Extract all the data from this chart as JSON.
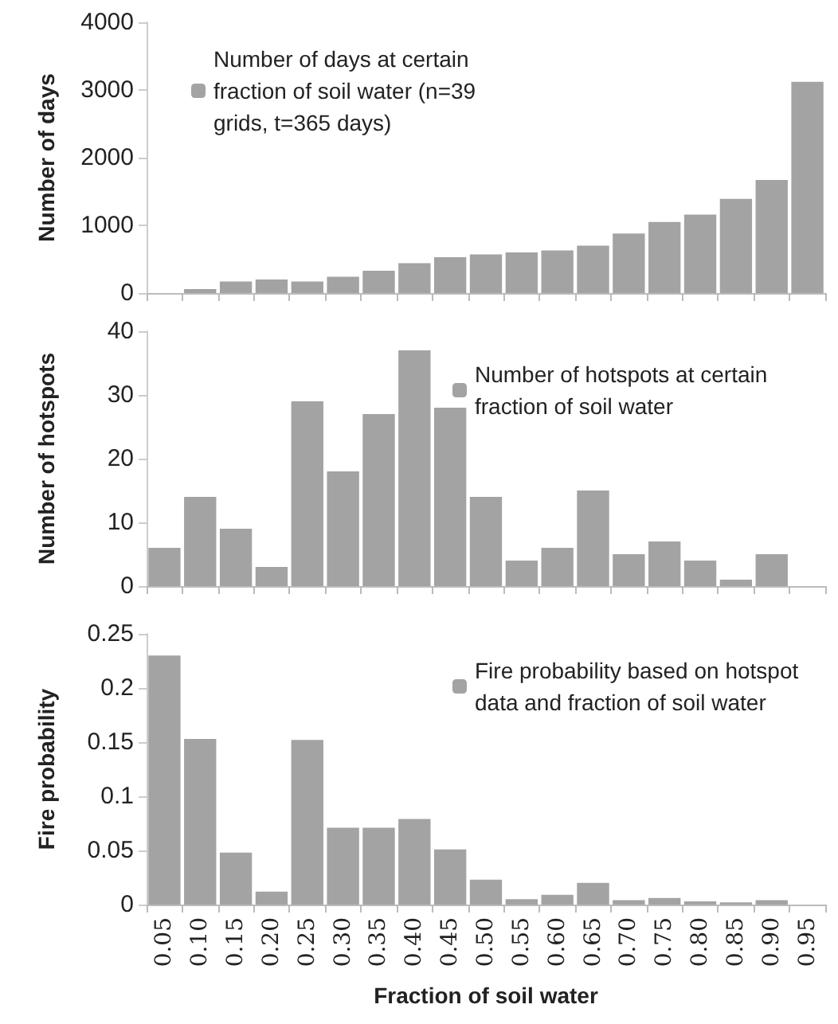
{
  "chart_data": [
    {
      "type": "bar",
      "ylabel": "Number of days",
      "categories": [
        "0.05",
        "0.10",
        "0.15",
        "0.20",
        "0.25",
        "0.30",
        "0.35",
        "0.40",
        "0.45",
        "0.50",
        "0.55",
        "0.60",
        "0.65",
        "0.70",
        "0.75",
        "0.80",
        "0.85",
        "0.90",
        "0.95"
      ],
      "series": [
        {
          "name": "Number of days at certain fraction of soil water (n=39 grids, t=365 days)",
          "color": "#a3a3a3",
          "values": [
            0,
            60,
            170,
            200,
            170,
            240,
            330,
            440,
            530,
            570,
            600,
            630,
            700,
            880,
            1050,
            1160,
            1390,
            1670,
            3120
          ]
        }
      ],
      "ylim": [
        0,
        4000
      ],
      "yticks": [
        0,
        1000,
        2000,
        3000,
        4000
      ],
      "grid": false,
      "legend": "top left",
      "tick_labels": "y"
    },
    {
      "type": "bar",
      "ylabel": "Number of hotspots",
      "categories": [
        "0.05",
        "0.10",
        "0.15",
        "0.20",
        "0.25",
        "0.30",
        "0.35",
        "0.40",
        "0.45",
        "0.50",
        "0.55",
        "0.60",
        "0.65",
        "0.70",
        "0.75",
        "0.80",
        "0.85",
        "0.90",
        "0.95"
      ],
      "series": [
        {
          "name": "Number of hotspots at certain fraction of soil water",
          "color": "#a3a3a3",
          "values": [
            6,
            14,
            9,
            3,
            29,
            18,
            27,
            37,
            28,
            14,
            4,
            6,
            15,
            5,
            7,
            4,
            1,
            5,
            0
          ]
        }
      ],
      "ylim": [
        0,
        40
      ],
      "yticks": [
        0,
        10,
        20,
        30,
        40
      ],
      "grid": false,
      "legend": "top right",
      "tick_labels": "y"
    },
    {
      "type": "bar",
      "xlabel": "Fraction of soil water",
      "ylabel": "Fire probability",
      "categories": [
        "0.05",
        "0.10",
        "0.15",
        "0.20",
        "0.25",
        "0.30",
        "0.35",
        "0.40",
        "0.45",
        "0.50",
        "0.55",
        "0.60",
        "0.65",
        "0.70",
        "0.75",
        "0.80",
        "0.85",
        "0.90",
        "0.95"
      ],
      "series": [
        {
          "name": "Fire probability based on hotspot data and fraction of soil water",
          "color": "#a3a3a3",
          "values": [
            0.23,
            0.153,
            0.048,
            0.012,
            0.152,
            0.071,
            0.071,
            0.079,
            0.051,
            0.023,
            0.005,
            0.009,
            0.02,
            0.004,
            0.006,
            0.003,
            0.002,
            0.004,
            0
          ]
        }
      ],
      "ylim": [
        0,
        0.25
      ],
      "yticks": [
        0,
        0.05,
        0.1,
        0.15,
        0.2,
        0.25
      ],
      "grid": false,
      "legend": "top right"
    }
  ]
}
